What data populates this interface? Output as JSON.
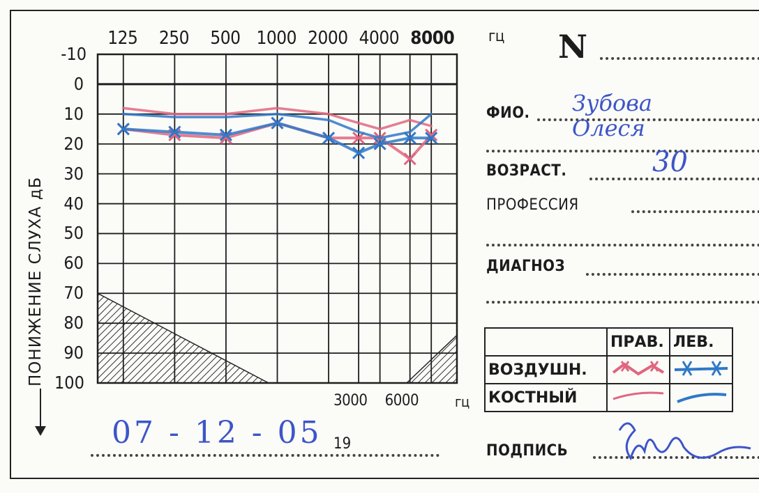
{
  "card": {
    "number_label": "N",
    "fio_label": "ФИО.",
    "fio_value": "Зубова Олеся",
    "age_label": "ВОЗРАСТ.",
    "age_value": "30",
    "profession_label": "ПРОФЕССИЯ",
    "diagnosis_label": "ДИАГНОЗ",
    "signature_label": "ПОДПИСЬ",
    "date_value": "07 - 12 - 05",
    "year_prefix": "19",
    "hz_unit": "гц"
  },
  "legend": {
    "right_header": "ПРАВ.",
    "left_header": "ЛЕВ.",
    "air_label": "ВОЗДУШН.",
    "bone_label": "КОСТНЫЙ",
    "right_color": "#e0667f",
    "left_color": "#2f78c8"
  },
  "chart_data": {
    "type": "line",
    "title": "",
    "xlabel": "",
    "ylabel": "ПОНИЖЕНИЕ СЛУХА дБ",
    "x": [
      "125",
      "250",
      "500",
      "1000",
      "2000",
      "4000",
      "8000"
    ],
    "x_extra": [
      "3000",
      "6000"
    ],
    "ylim": [
      -10,
      100
    ],
    "y_ticks": [
      "-10",
      "0",
      "10",
      "20",
      "30",
      "40",
      "50",
      "60",
      "70",
      "80",
      "90",
      "100"
    ],
    "y_reversed": true,
    "grid": true,
    "series": [
      {
        "name": "",
        "key": "right_air",
        "color": "#e0667f",
        "x": [
          125,
          250,
          500,
          1000,
          2000,
          3000,
          4000,
          6000,
          8000
        ],
        "values": [
          15,
          17,
          18,
          13,
          18,
          18,
          18,
          25,
          17
        ]
      },
      {
        "name": "",
        "key": "left_air",
        "color": "#2f78c8",
        "x": [
          125,
          250,
          500,
          1000,
          2000,
          3000,
          4000,
          6000,
          8000
        ],
        "values": [
          15,
          16,
          17,
          13,
          18,
          23,
          20,
          18,
          18
        ]
      },
      {
        "name": "",
        "key": "right_bone",
        "color": "#e0667f",
        "x": [
          125,
          250,
          500,
          1000,
          2000,
          3000,
          4000,
          6000,
          8000
        ],
        "values": [
          8,
          10,
          10,
          8,
          10,
          13,
          15,
          12,
          14
        ]
      },
      {
        "name": "",
        "key": "left_bone",
        "color": "#2f78c8",
        "x": [
          125,
          250,
          500,
          1000,
          2000,
          3000,
          4000,
          6000,
          8000
        ],
        "values": [
          10,
          11,
          11,
          10,
          12,
          16,
          18,
          16,
          10
        ]
      }
    ],
    "shaded_regions": [
      "lower-left",
      "lower-right"
    ]
  }
}
